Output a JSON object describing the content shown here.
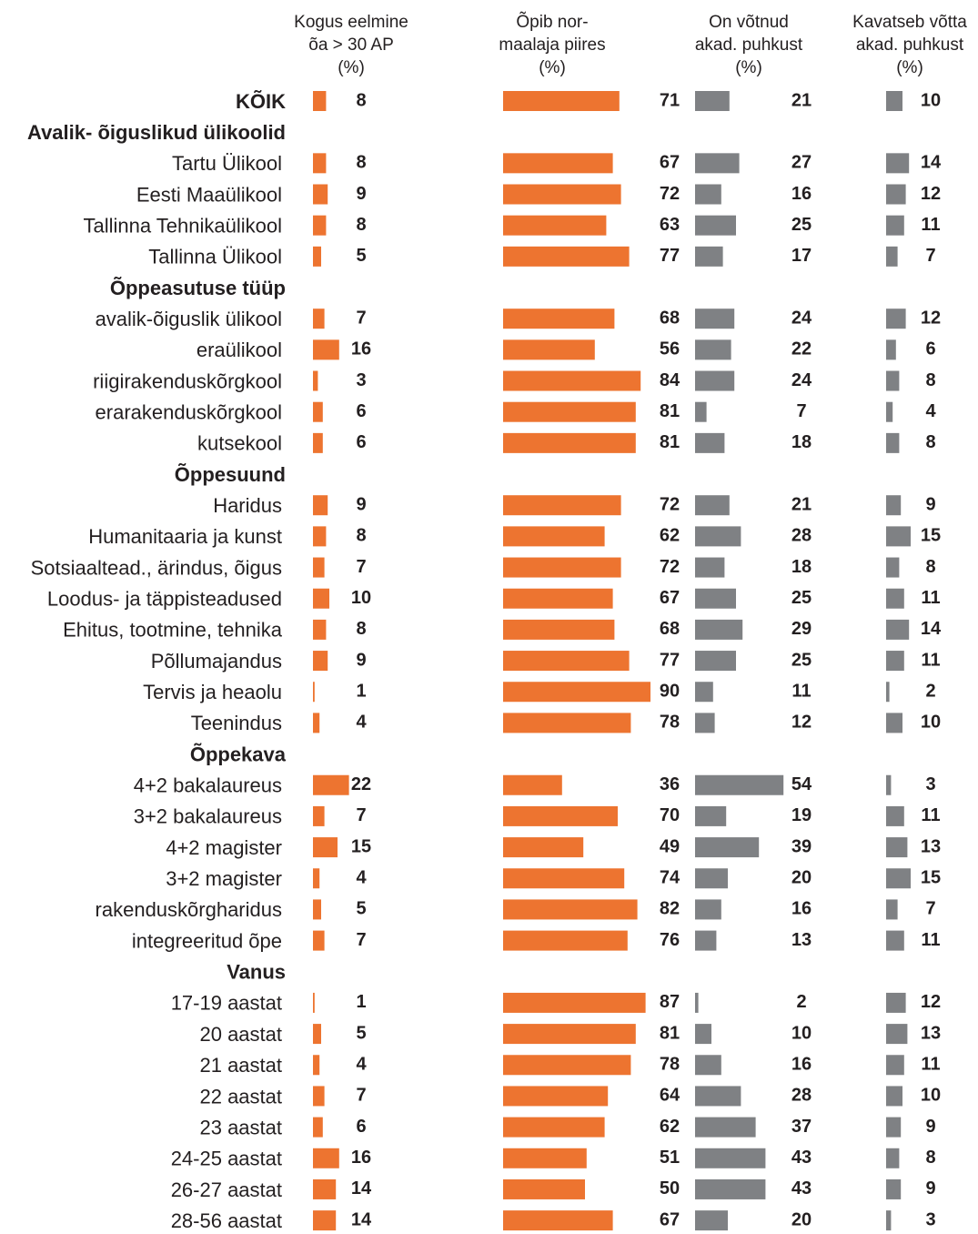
{
  "chart_data": {
    "type": "bar",
    "orientation": "horizontal",
    "series": [
      {
        "name": "Kogus eelmine\nõa > 30 AP\n(%)",
        "color": "#ed7430",
        "values": [
          null,
          8,
          9,
          8,
          5,
          null,
          7,
          16,
          3,
          6,
          6,
          null,
          9,
          8,
          7,
          10,
          8,
          9,
          1,
          4,
          null,
          22,
          7,
          15,
          4,
          5,
          7,
          null,
          1,
          5,
          4,
          7,
          6,
          16,
          14,
          14
        ]
      },
      {
        "name": "Õpib nor-\nmaalaja piires\n(%)",
        "color": "#ed7430",
        "values": [
          null,
          67,
          72,
          63,
          77,
          null,
          68,
          56,
          84,
          81,
          81,
          null,
          72,
          62,
          72,
          67,
          68,
          77,
          90,
          78,
          null,
          36,
          70,
          49,
          74,
          82,
          76,
          null,
          87,
          81,
          78,
          64,
          62,
          51,
          50,
          67
        ]
      },
      {
        "name": "On võtnud\nakad. puhkust\n(%)",
        "color": "#7f8184",
        "values": [
          null,
          27,
          16,
          25,
          17,
          null,
          24,
          22,
          24,
          7,
          18,
          null,
          21,
          28,
          18,
          25,
          29,
          25,
          11,
          12,
          null,
          54,
          19,
          39,
          20,
          16,
          13,
          null,
          2,
          10,
          16,
          28,
          37,
          43,
          43,
          20
        ]
      },
      {
        "name": "Kavatseb võtta\nakad. puhkust\n(%)",
        "color": "#7f8184",
        "values": [
          null,
          14,
          12,
          11,
          7,
          null,
          12,
          6,
          8,
          4,
          8,
          null,
          9,
          15,
          8,
          11,
          14,
          11,
          2,
          10,
          null,
          3,
          11,
          13,
          15,
          7,
          11,
          null,
          12,
          13,
          11,
          10,
          9,
          8,
          9,
          3
        ]
      }
    ],
    "total": {
      "label": "KÕIK",
      "values": [
        8,
        71,
        21,
        10
      ]
    },
    "categories": [
      "Avalik- õiguslikud ülikoolid",
      "Tartu Ülikool",
      "Eesti Maaülikool",
      "Tallinna Tehnikaülikool",
      "Tallinna Ülikool",
      "Õppeasutuse tüüp",
      "avalik-õiguslik ülikool",
      "eraülikool",
      "riigirakenduskõrgkool",
      "erarakenduskõrgkool",
      "kutsekool",
      "Õppesuund",
      "Haridus",
      "Humanitaaria ja kunst",
      "Sotsiaaltead., ärindus, õigus",
      "Loodus- ja täppisteadused",
      "Ehitus, tootmine, tehnika",
      "Põllumajandus",
      "Tervis ja heaolu",
      "Teenindus",
      "Õppekava",
      "4+2 bakalaureus",
      "3+2 bakalaureus",
      "4+2 magister",
      "3+2 magister",
      "rakenduskõrgharidus",
      "integreeritud õpe",
      "Vanus",
      "17-19 aastat",
      "20 aastat",
      "21 aastat",
      "22 aastat",
      "23 aastat",
      "24-25 aastat",
      "26-27 aastat",
      "28-56 aastat"
    ]
  }
}
